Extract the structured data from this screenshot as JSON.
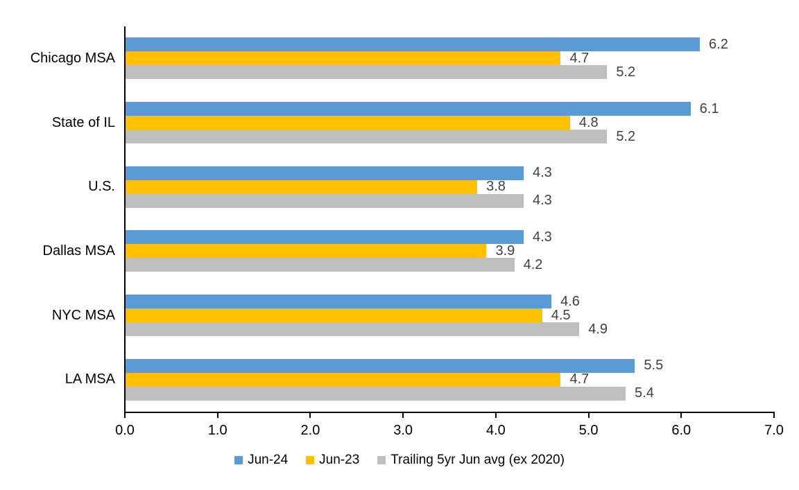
{
  "chart_data": {
    "type": "bar",
    "orientation": "horizontal",
    "title": "",
    "xlabel": "",
    "ylabel": "",
    "xlim": [
      0,
      7
    ],
    "x_ticks": [
      "0.0",
      "1.0",
      "2.0",
      "3.0",
      "4.0",
      "5.0",
      "6.0",
      "7.0"
    ],
    "grid": false,
    "legend_position": "bottom",
    "categories": [
      "Chicago MSA",
      "State of IL",
      "U.S.",
      "Dallas MSA",
      "NYC MSA",
      "LA MSA"
    ],
    "series": [
      {
        "name": "Jun-24",
        "color": "#5B9BD5",
        "values": [
          6.2,
          6.1,
          4.3,
          4.3,
          4.6,
          5.5
        ]
      },
      {
        "name": "Jun-23",
        "color": "#FFC000",
        "values": [
          4.7,
          4.8,
          3.8,
          3.9,
          4.5,
          4.7
        ]
      },
      {
        "name": "Trailing 5yr Jun avg (ex 2020)",
        "color": "#BFBFBF",
        "values": [
          5.2,
          5.2,
          4.3,
          4.2,
          4.9,
          5.4
        ]
      }
    ],
    "value_label_color": "#404040",
    "axis_color": "#000000"
  }
}
